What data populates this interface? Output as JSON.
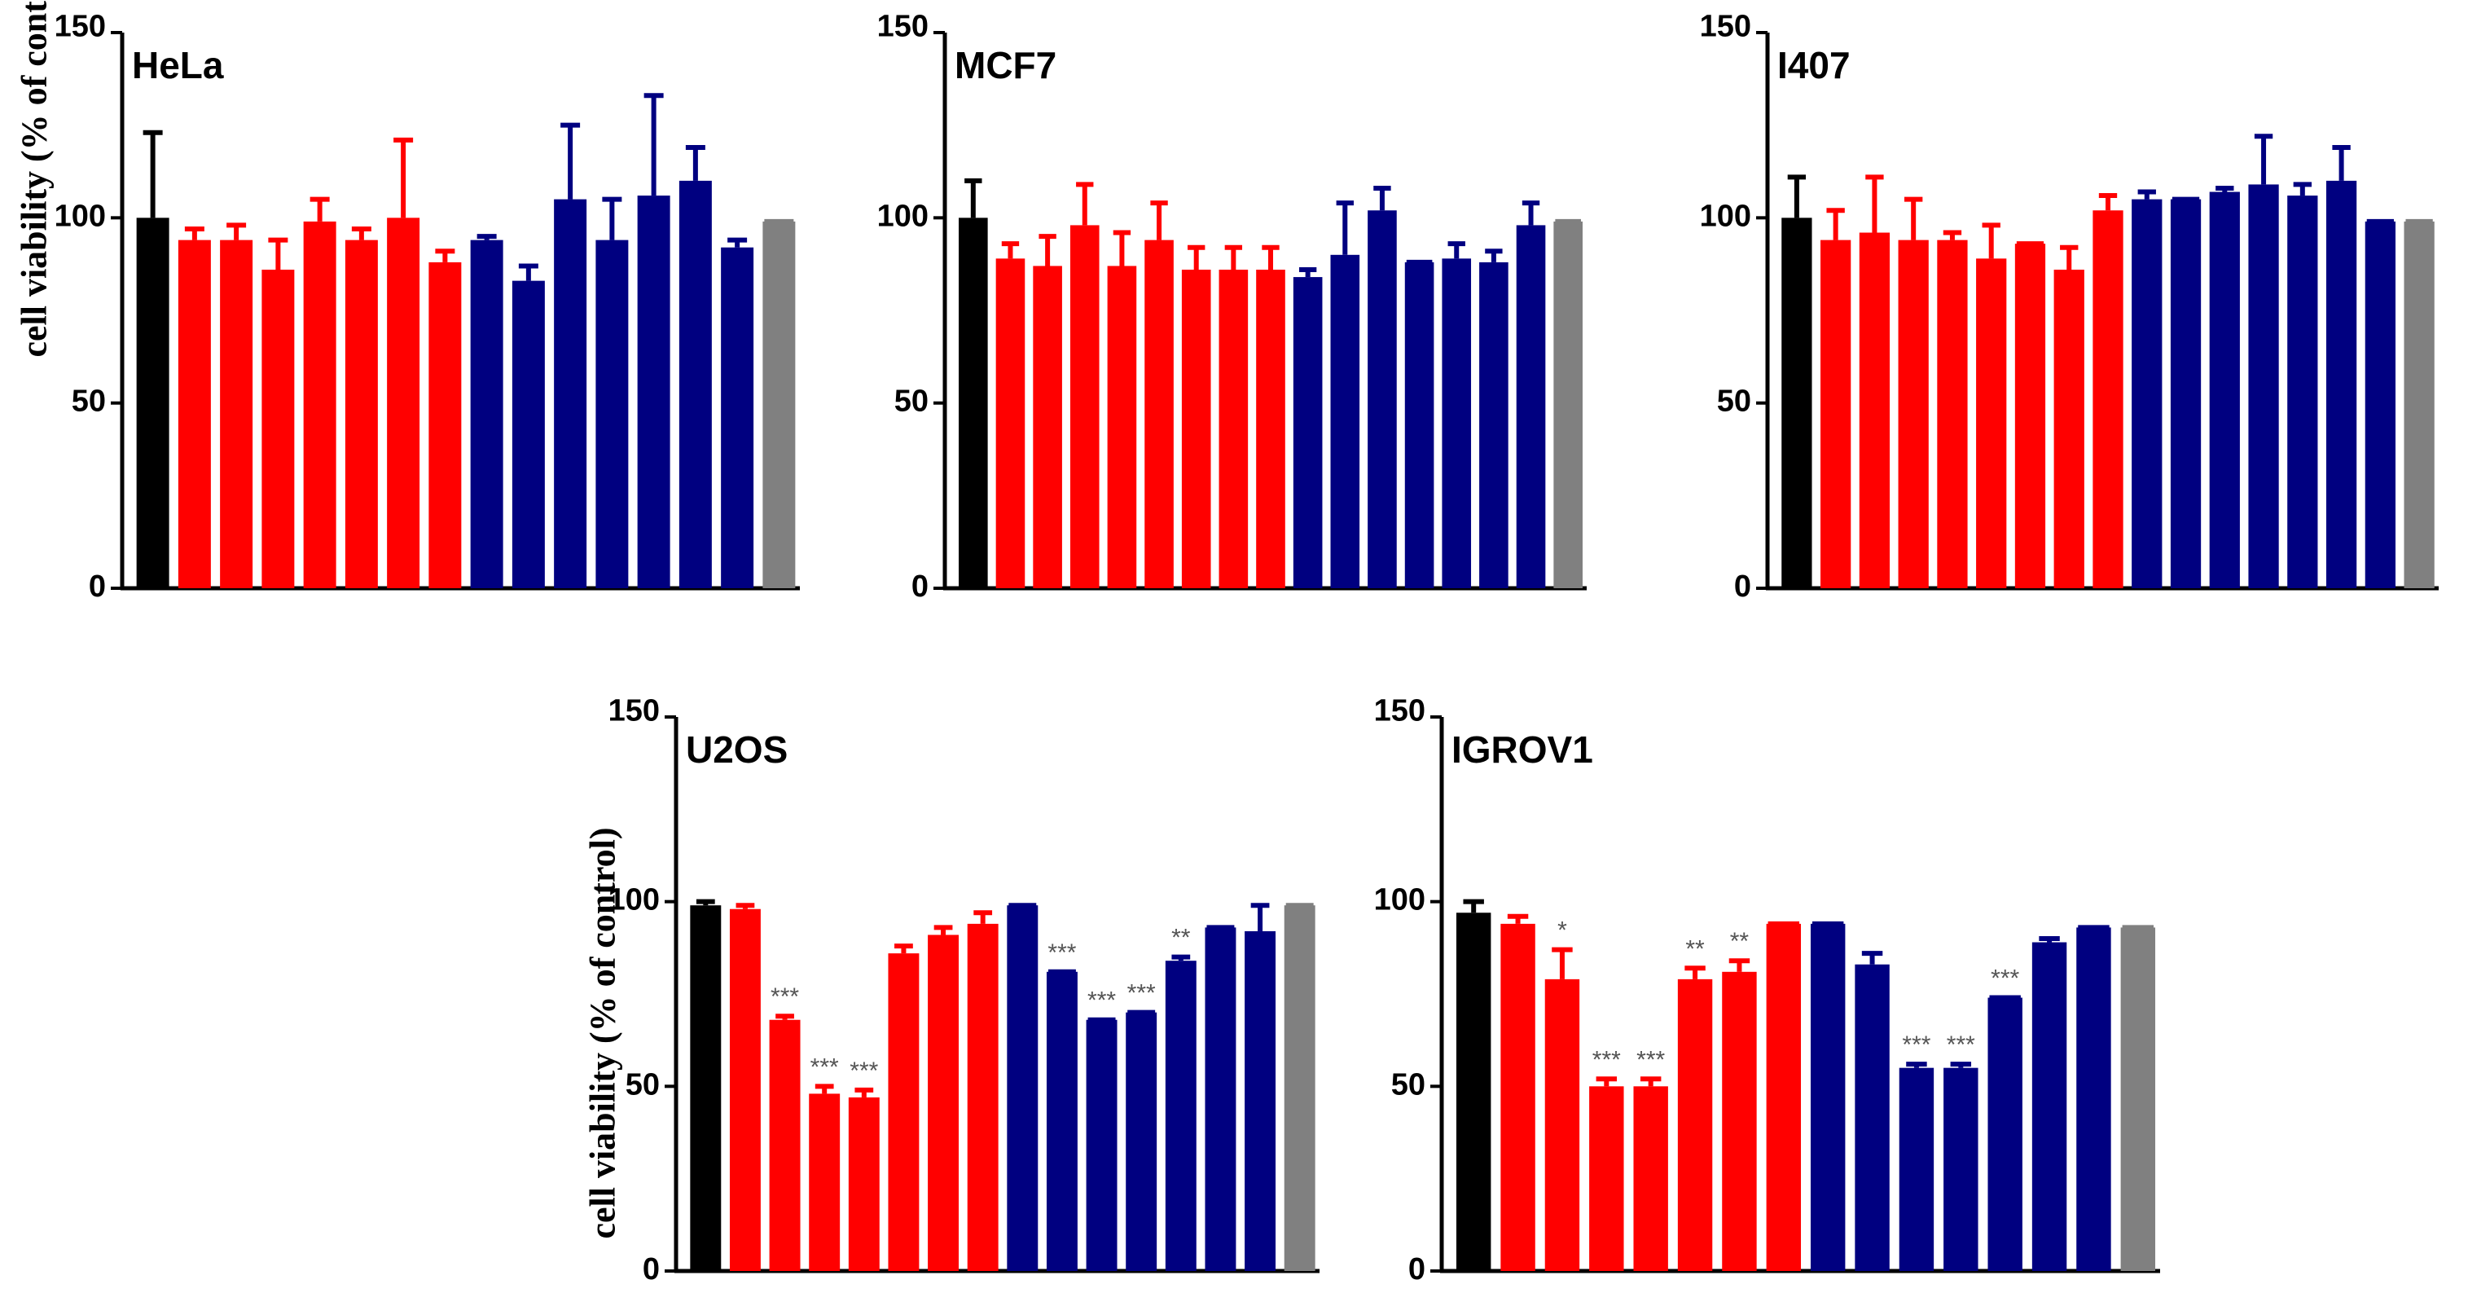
{
  "figure": {
    "ylabel": "cell viability (% of control)"
  },
  "chart_data": [
    {
      "type": "bar",
      "title": "HeLa",
      "ylabel": "cell viability (% of control)",
      "ylim": [
        0,
        150
      ],
      "yticks": [
        "0",
        "50",
        "100",
        "150"
      ],
      "colors": [
        "#000000",
        "#ff0000",
        "#ff0000",
        "#ff0000",
        "#ff0000",
        "#ff0000",
        "#ff0000",
        "#ff0000",
        "#000080",
        "#000080",
        "#000080",
        "#000080",
        "#000080",
        "#000080",
        "#000080",
        "#808080"
      ],
      "values": [
        100,
        94,
        94,
        86,
        99,
        94,
        100,
        88,
        94,
        83,
        105,
        94,
        106,
        110,
        92,
        99
      ],
      "errors": [
        23,
        3,
        4,
        8,
        6,
        3,
        21,
        3,
        1,
        4,
        20,
        11,
        27,
        9,
        2,
        0
      ],
      "significance": [
        "",
        "",
        "",
        "",
        "",
        "",
        "",
        "",
        "",
        "",
        "",
        "",
        "",
        "",
        "",
        ""
      ]
    },
    {
      "type": "bar",
      "title": "MCF7",
      "ylabel": "",
      "ylim": [
        0,
        150
      ],
      "yticks": [
        "0",
        "50",
        "100",
        "150"
      ],
      "colors": [
        "#000000",
        "#ff0000",
        "#ff0000",
        "#ff0000",
        "#ff0000",
        "#ff0000",
        "#ff0000",
        "#ff0000",
        "#ff0000",
        "#000080",
        "#000080",
        "#000080",
        "#000080",
        "#000080",
        "#000080",
        "#000080",
        "#808080"
      ],
      "values": [
        100,
        89,
        87,
        98,
        87,
        94,
        86,
        86,
        86,
        84,
        90,
        102,
        88,
        89,
        88,
        98,
        99
      ],
      "errors": [
        10,
        4,
        8,
        11,
        9,
        10,
        6,
        6,
        6,
        2,
        14,
        6,
        0,
        4,
        3,
        6,
        0
      ],
      "significance": [
        "",
        "",
        "",
        "",
        "",
        "",
        "",
        "",
        "",
        "",
        "",
        "",
        "",
        "",
        "",
        "",
        ""
      ]
    },
    {
      "type": "bar",
      "title": "I407",
      "ylabel": "",
      "ylim": [
        0,
        150
      ],
      "yticks": [
        "0",
        "50",
        "100",
        "150"
      ],
      "colors": [
        "#000000",
        "#ff0000",
        "#ff0000",
        "#ff0000",
        "#ff0000",
        "#ff0000",
        "#ff0000",
        "#ff0000",
        "#ff0000",
        "#000080",
        "#000080",
        "#000080",
        "#000080",
        "#000080",
        "#000080",
        "#000080",
        "#808080"
      ],
      "values": [
        100,
        94,
        96,
        94,
        94,
        89,
        93,
        86,
        102,
        105,
        105,
        107,
        109,
        106,
        110,
        99,
        99
      ],
      "errors": [
        11,
        8,
        15,
        11,
        2,
        9,
        0,
        6,
        4,
        2,
        0,
        1,
        13,
        3,
        9,
        0,
        0
      ],
      "significance": [
        "",
        "",
        "",
        "",
        "",
        "",
        "",
        "",
        "",
        "",
        "",
        "",
        "",
        "",
        "",
        "",
        ""
      ]
    },
    {
      "type": "bar",
      "title": "U2OS",
      "ylabel": "cell viability (% of control)",
      "ylim": [
        0,
        150
      ],
      "yticks": [
        "0",
        "50",
        "100",
        "150"
      ],
      "colors": [
        "#000000",
        "#ff0000",
        "#ff0000",
        "#ff0000",
        "#ff0000",
        "#ff0000",
        "#ff0000",
        "#ff0000",
        "#000080",
        "#000080",
        "#000080",
        "#000080",
        "#000080",
        "#000080",
        "#000080",
        "#808080"
      ],
      "values": [
        99,
        98,
        68,
        48,
        47,
        86,
        91,
        94,
        99,
        81,
        68,
        70,
        84,
        93,
        92,
        99
      ],
      "errors": [
        1,
        1,
        1,
        2,
        2,
        2,
        2,
        3,
        0,
        0,
        0,
        0,
        1,
        0,
        7,
        0
      ],
      "significance": [
        "",
        "",
        "***",
        "***",
        "***",
        "",
        "",
        "",
        "",
        "***",
        "***",
        "***",
        "**",
        "",
        "",
        ""
      ]
    },
    {
      "type": "bar",
      "title": "IGROV1",
      "ylabel": "",
      "ylim": [
        0,
        150
      ],
      "yticks": [
        "0",
        "50",
        "100",
        "150"
      ],
      "colors": [
        "#000000",
        "#ff0000",
        "#ff0000",
        "#ff0000",
        "#ff0000",
        "#ff0000",
        "#ff0000",
        "#ff0000",
        "#000080",
        "#000080",
        "#000080",
        "#000080",
        "#000080",
        "#000080",
        "#000080",
        "#808080"
      ],
      "values": [
        97,
        94,
        79,
        50,
        50,
        79,
        81,
        94,
        94,
        83,
        55,
        55,
        74,
        89,
        93,
        93
      ],
      "errors": [
        3,
        2,
        8,
        2,
        2,
        3,
        3,
        0,
        0,
        3,
        1,
        1,
        0,
        1,
        0,
        0
      ],
      "significance": [
        "",
        "",
        "*",
        "***",
        "***",
        "**",
        "**",
        "",
        "",
        "",
        "***",
        "***",
        "***",
        "",
        "",
        ""
      ]
    }
  ]
}
